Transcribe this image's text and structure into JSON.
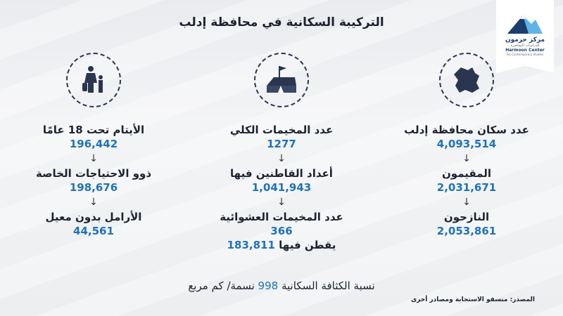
{
  "title": "التركيبة السكانية في محافظة إدلب",
  "logo": {
    "arabic_name": "مركز حرمون",
    "arabic_sub": "للدراسات المعاصرة",
    "english_name": "Harmoon Center",
    "english_sub": "For Contemporary Studies"
  },
  "colors": {
    "accent": "#1f72b8",
    "text": "#1c2230"
  },
  "arrow": "↓",
  "columns": [
    {
      "icon": "map-icon",
      "items": [
        {
          "label": "عدد سكان محافظة إدلب",
          "value": "4,093,514"
        },
        {
          "label": "المقيمون",
          "value": "2,031,671"
        },
        {
          "label": "النازحون",
          "value": "2,053,861"
        }
      ]
    },
    {
      "icon": "tent-flag-icon",
      "items": [
        {
          "label": "عدد المخيمات الكلي",
          "value": "1277"
        },
        {
          "label": "أعداد القاطنين فيها",
          "value": "1,041,943"
        },
        {
          "label": "عدد المخيمات العشوائية",
          "value": "366"
        }
      ],
      "extra": {
        "prefix": "يقطن فيها",
        "value": "183,811"
      }
    },
    {
      "icon": "family-icon",
      "items": [
        {
          "label": "الأيتام تحت 18 عامًا",
          "value": "196,442"
        },
        {
          "label": "ذوو الاحتياجات الخاصة",
          "value": "198,676"
        },
        {
          "label": "الأرامل بدون معيل",
          "value": "44,561"
        }
      ]
    }
  ],
  "density": {
    "prefix": "نسبة الكثافة السكانية",
    "value": "998",
    "suffix": "نسمة/ كم مربع"
  },
  "source": "المصدر: منسقو الاستجابة ومصادر أخرى"
}
